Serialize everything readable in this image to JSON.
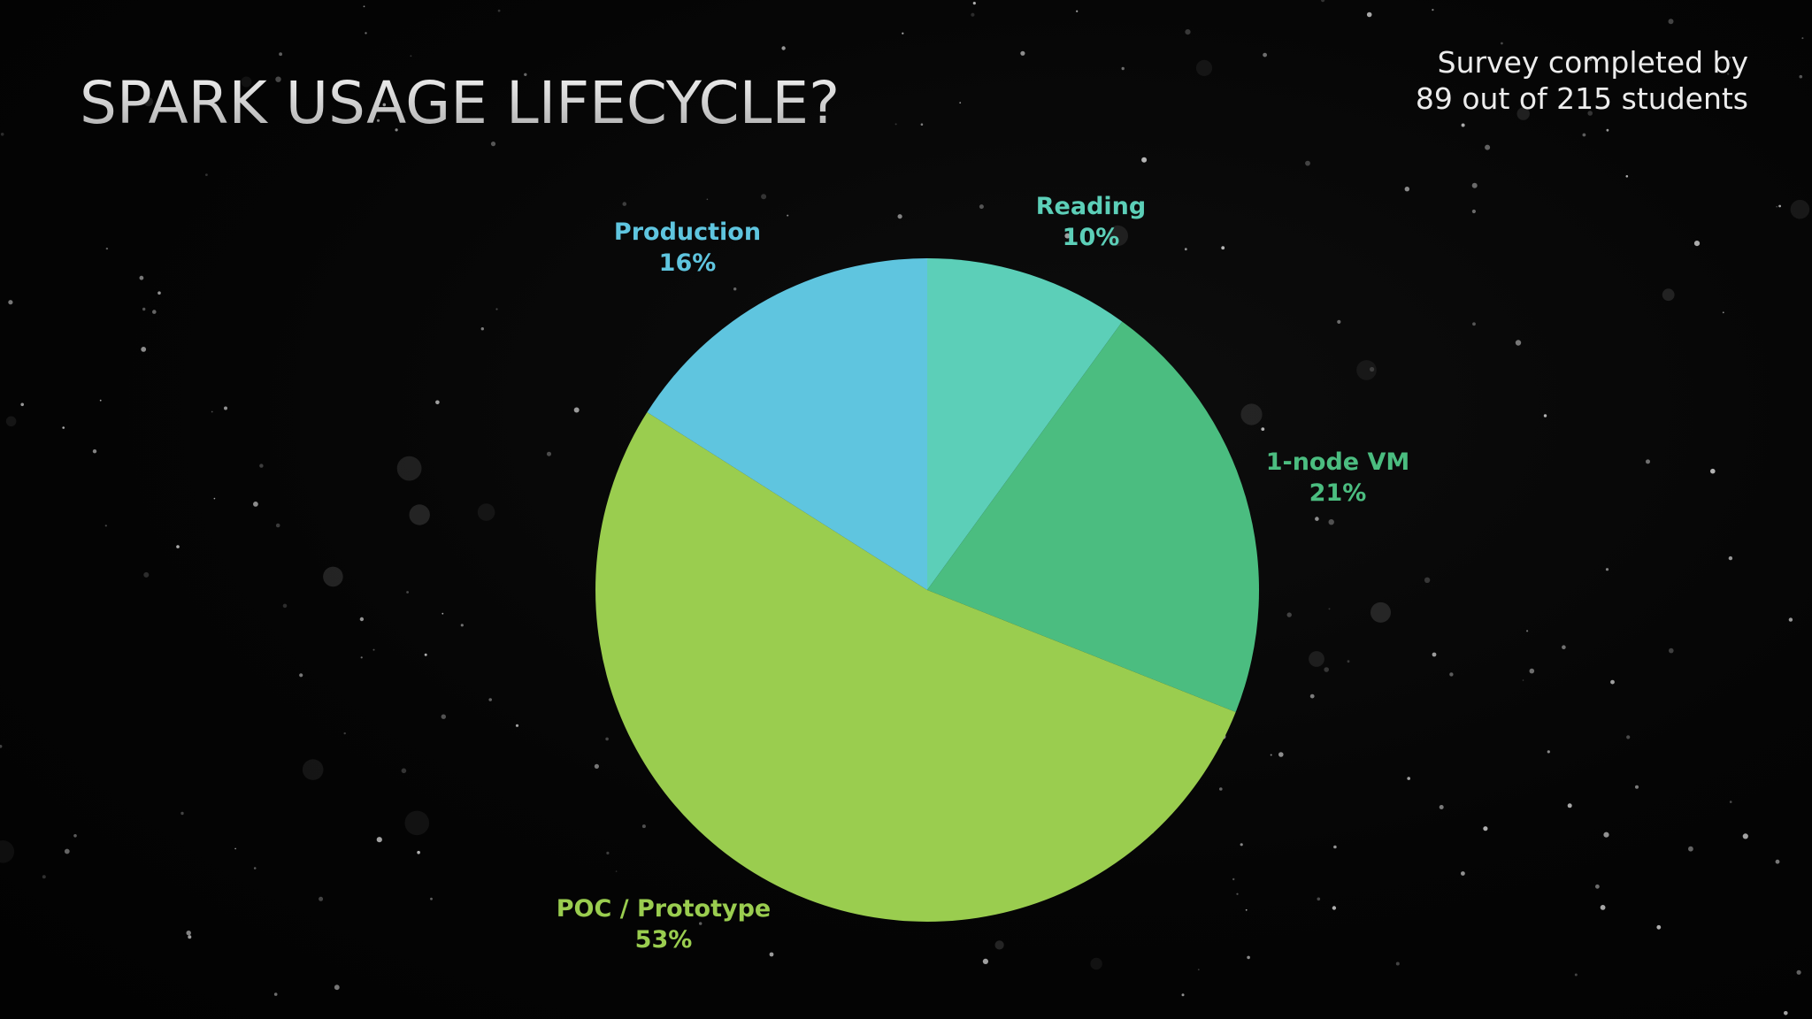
{
  "slide": {
    "title": "SPARK USAGE LIFECYCLE?",
    "note_line1": "Survey completed by",
    "note_line2": "89 out of 215 students"
  },
  "colors": {
    "background": "#040404",
    "title": "#dcdcdc",
    "note": "#ececec"
  },
  "chart_data": {
    "type": "pie",
    "start_angle_deg": 0,
    "direction": "clockwise",
    "legend": "none",
    "slices": [
      {
        "name": "Reading",
        "value_label": "10%",
        "value": 10,
        "color": "#5ccfb8",
        "label_color": "#5ccfb8"
      },
      {
        "name": "1-node VM",
        "value_label": "21%",
        "value": 21,
        "color": "#4bbd80",
        "label_color": "#4bbd80"
      },
      {
        "name": "POC / Prototype",
        "value_label": "53%",
        "value": 53,
        "color": "#9acd4f",
        "label_color": "#9acd4f"
      },
      {
        "name": "Production",
        "value_label": "16%",
        "value": 16,
        "color": "#5fc5df",
        "label_color": "#5fc5df"
      }
    ]
  }
}
